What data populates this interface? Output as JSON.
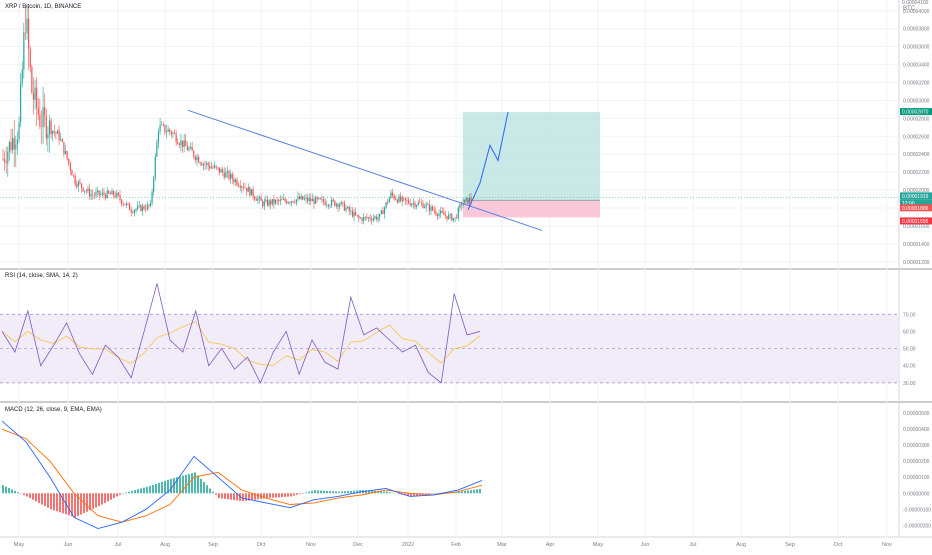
{
  "header": {
    "symbol_title": "XRP / Bitcoin, 1D, BINANCE"
  },
  "price_axis": {
    "currency": "BTC",
    "top_label": "0.00004100",
    "ticks": [
      "0.00004000",
      "0.00003800",
      "0.00003600",
      "0.00003400",
      "0.00003200",
      "0.00003000",
      "0.00002800",
      "0.00002600",
      "0.00002400",
      "0.00002200",
      "0.00002000",
      "0.00001800",
      "0.00001600",
      "0.00001400",
      "0.00001200"
    ],
    "badges": [
      {
        "text": "0.00002870",
        "color": "#089981"
      },
      {
        "text": "0.00001919",
        "color": "#26a69a"
      },
      {
        "text": "12:00",
        "color": "#26a69a"
      },
      {
        "text": "0.00001886",
        "color": "#ef5350"
      },
      {
        "text": "0.00001695",
        "color": "#f23645"
      }
    ]
  },
  "rsi_panel": {
    "title": "RSI (14, close, SMA, 14, 2)",
    "ticks": [
      "70.00",
      "60.00",
      "50.00",
      "40.00",
      "30.00"
    ],
    "upper_band": 70,
    "lower_band": 30
  },
  "macd_panel": {
    "title": "MACD (12, 26, close, 9, EMA, EMA)",
    "ticks": [
      "0.00000500",
      "0.00000400",
      "0.00000300",
      "0.00000200",
      "0.00000100",
      "0.00000000",
      "-0.00000100",
      "-0.00000200"
    ]
  },
  "time_axis": {
    "labels": [
      "May",
      "Jun",
      "Jul",
      "Aug",
      "Sep",
      "Oct",
      "Nov",
      "Dec",
      "2022",
      "Feb",
      "Mar",
      "Apr",
      "May",
      "Jun",
      "Jul",
      "Aug",
      "Sep",
      "Oct",
      "Nov"
    ]
  },
  "colors": {
    "up": "#26a69a",
    "down": "#ef5350",
    "trendline": "#5b7fe0",
    "rsi_line": "#7e57c2",
    "rsi_ma": "#f5c542",
    "macd_line": "#2962ff",
    "signal_line": "#ff6d00",
    "profit_zone": "#b2dfdb",
    "loss_zone": "#f8bbd0",
    "band_fill": "#ede7f6"
  },
  "chart_data": {
    "type": "candlestick",
    "title": "XRP / Bitcoin, 1D, BINANCE",
    "ylim": [
      1.12e-05,
      4.12e-05
    ],
    "x_labels": [
      "May",
      "Jun",
      "Jul",
      "Aug",
      "Sep",
      "Oct",
      "Nov",
      "Dec",
      "2022",
      "Feb",
      "Mar",
      "Apr",
      "May",
      "Jun",
      "Jul",
      "Aug",
      "Sep",
      "Oct",
      "Nov"
    ],
    "price_path": [
      {
        "date": "May",
        "close": 2.35e-05
      },
      {
        "date": "mid-May",
        "close": 3.95e-05
      },
      {
        "date": "Jun",
        "close": 2.6e-05
      },
      {
        "date": "Jul",
        "close": 2.05e-05
      },
      {
        "date": "mid-Jul",
        "close": 1.72e-05
      },
      {
        "date": "Aug",
        "close": 1.82e-05
      },
      {
        "date": "mid-Aug",
        "close": 2.85e-05
      },
      {
        "date": "Sep",
        "close": 2.55e-05
      },
      {
        "date": "Oct",
        "close": 2.18e-05
      },
      {
        "date": "Nov",
        "close": 1.83e-05
      },
      {
        "date": "Dec",
        "close": 1.65e-05
      },
      {
        "date": "late-Dec",
        "close": 1.88e-05
      },
      {
        "date": "2022",
        "close": 1.82e-05
      },
      {
        "date": "Feb",
        "close": 1.67e-05
      },
      {
        "date": "mid-Feb",
        "close": 1.92e-05
      }
    ],
    "trendline": {
      "start": {
        "date": "mid-Aug",
        "price": 2.89e-05
      },
      "end": {
        "date": "Mar",
        "price": 1.55e-05
      }
    },
    "position": {
      "entry": 1.886e-05,
      "stop": 1.695e-05,
      "target": 2.87e-05,
      "last": 1.919e-05
    },
    "projection": [
      1.78e-05,
      2.08e-05,
      2.5e-05,
      2.33e-05,
      2.87e-05
    ],
    "rsi": [
      60,
      48,
      72,
      40,
      52,
      65,
      47,
      35,
      52,
      45,
      33,
      60,
      88,
      55,
      48,
      72,
      40,
      50,
      38,
      45,
      30,
      48,
      60,
      35,
      55,
      42,
      38,
      80,
      58,
      62,
      55,
      48,
      52,
      36,
      30,
      82,
      58,
      60
    ],
    "macd_line": [
      4.5,
      3.2,
      1.0,
      -1.5,
      -2.2,
      -1.8,
      -1.0,
      0.2,
      2.3,
      1.0,
      -0.3,
      -0.6,
      -0.9,
      -0.4,
      -0.2,
      0.1,
      0.3,
      -0.2,
      -0.1,
      0.2,
      0.8
    ],
    "signal_line": [
      4.0,
      3.4,
      2.0,
      0.0,
      -1.4,
      -1.8,
      -1.4,
      -0.7,
      1.0,
      1.3,
      0.2,
      -0.3,
      -0.7,
      -0.6,
      -0.3,
      -0.1,
      0.2,
      0.0,
      -0.1,
      0.1,
      0.5
    ]
  }
}
